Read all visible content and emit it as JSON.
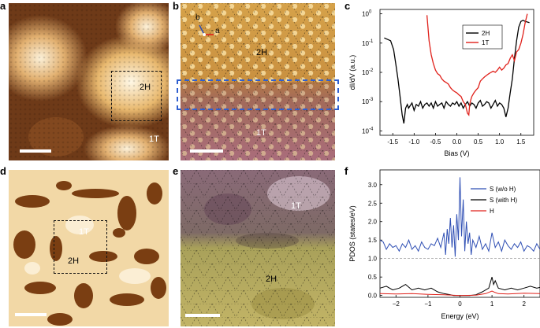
{
  "panels": {
    "a": {
      "label": "a",
      "region_2h": "2H",
      "region_1t": "1T"
    },
    "b": {
      "label": "b",
      "vec_a": "a",
      "vec_b": "b",
      "region_2h": "2H",
      "region_1t": "1T"
    },
    "c": {
      "label": "c"
    },
    "d": {
      "label": "d",
      "region_1t": "1T",
      "region_2h": "2H"
    },
    "e": {
      "label": "e",
      "region_1t": "1T",
      "region_2h": "2H"
    },
    "f": {
      "label": "f"
    }
  },
  "colors": {
    "black": "#000000",
    "red": "#e0201a",
    "blue": "#2f4fb4",
    "dashed_blue": "#2f5fd0"
  },
  "chart_data": [
    {
      "id": "c",
      "type": "line",
      "ylabel": "dI/dV (a.u.)",
      "xlabel": "Bias (V)",
      "yscale": "log",
      "xlim": [
        -1.8,
        1.8
      ],
      "ylim_exp": [
        -4,
        0
      ],
      "xticks": [
        -1.5,
        -1.0,
        -0.5,
        0.0,
        0.5,
        1.0,
        1.5
      ],
      "xtick_labels": [
        "-1.5",
        "-1.0",
        "-0.5",
        "0.0",
        "0.5",
        "1.0",
        "1.5"
      ],
      "ytick_exps": [
        -4,
        -3,
        -2,
        -1,
        0
      ],
      "ytick_labels": [
        "10",
        "10",
        "10",
        "10",
        "10"
      ],
      "ytick_sups": [
        "-4",
        "-3",
        "-2",
        "-1",
        "0"
      ],
      "series": [
        {
          "name": "2H",
          "color": "#000000",
          "x": [
            -1.7,
            -1.55,
            -1.48,
            -1.43,
            -1.38,
            -1.33,
            -1.28,
            -1.24,
            -1.2,
            -1.16,
            -1.13,
            -1.1,
            -1.05,
            -1.0,
            -0.95,
            -0.9,
            -0.85,
            -0.8,
            -0.75,
            -0.7,
            -0.65,
            -0.6,
            -0.55,
            -0.5,
            -0.45,
            -0.4,
            -0.35,
            -0.3,
            -0.25,
            -0.2,
            -0.15,
            -0.1,
            -0.05,
            0.0,
            0.05,
            0.1,
            0.15,
            0.2,
            0.25,
            0.3,
            0.35,
            0.4,
            0.45,
            0.5,
            0.55,
            0.6,
            0.65,
            0.7,
            0.75,
            0.8,
            0.85,
            0.9,
            0.95,
            1.0,
            1.05,
            1.1,
            1.15,
            1.2,
            1.25,
            1.3,
            1.35,
            1.4,
            1.45,
            1.5,
            1.55,
            1.6,
            1.7
          ],
          "y": [
            0.15,
            0.12,
            0.06,
            0.02,
            0.006,
            0.0015,
            0.00035,
            0.00018,
            0.0006,
            0.0008,
            0.0006,
            0.0007,
            0.0009,
            0.0005,
            0.0008,
            0.0007,
            0.001,
            0.0006,
            0.0008,
            0.0009,
            0.0007,
            0.0009,
            0.0006,
            0.001,
            0.0007,
            0.0008,
            0.0009,
            0.0006,
            0.001,
            0.0008,
            0.0007,
            0.0009,
            0.0008,
            0.001,
            0.0007,
            0.0009,
            0.0006,
            0.0008,
            0.001,
            0.0007,
            0.0009,
            0.0008,
            0.0006,
            0.0009,
            0.0011,
            0.0007,
            0.0008,
            0.001,
            0.0009,
            0.0006,
            0.0008,
            0.0011,
            0.0007,
            0.0009,
            0.0008,
            0.0006,
            0.0003,
            0.0006,
            0.002,
            0.006,
            0.03,
            0.12,
            0.35,
            0.55,
            0.6,
            0.55,
            0.5
          ]
        },
        {
          "name": "1T",
          "color": "#e0201a",
          "x": [
            -0.7,
            -0.65,
            -0.6,
            -0.55,
            -0.5,
            -0.45,
            -0.4,
            -0.35,
            -0.3,
            -0.25,
            -0.2,
            -0.15,
            -0.1,
            -0.05,
            0.0,
            0.05,
            0.1,
            0.15,
            0.2,
            0.25,
            0.28,
            0.3,
            0.33,
            0.35,
            0.4,
            0.45,
            0.5,
            0.55,
            0.6,
            0.65,
            0.7,
            0.75,
            0.8,
            0.85,
            0.9,
            0.95,
            1.0,
            1.05,
            1.1,
            1.15,
            1.2,
            1.25,
            1.3,
            1.35,
            1.4,
            1.45,
            1.5,
            1.55,
            1.6,
            1.65
          ],
          "y": [
            0.9,
            0.12,
            0.04,
            0.02,
            0.012,
            0.009,
            0.008,
            0.006,
            0.005,
            0.0045,
            0.004,
            0.003,
            0.0025,
            0.0022,
            0.002,
            0.0017,
            0.0015,
            0.001,
            0.0008,
            0.0004,
            0.00035,
            0.0008,
            0.0012,
            0.0015,
            0.002,
            0.0025,
            0.003,
            0.005,
            0.006,
            0.007,
            0.008,
            0.009,
            0.01,
            0.011,
            0.01,
            0.012,
            0.015,
            0.012,
            0.014,
            0.018,
            0.02,
            0.03,
            0.04,
            0.025,
            0.05,
            0.06,
            0.1,
            0.2,
            0.5,
            1.0
          ]
        }
      ],
      "legend": [
        "2H",
        "1T"
      ]
    },
    {
      "id": "f",
      "type": "line",
      "ylabel": "PDOS (states/eV)",
      "xlabel": "Energy (eV)",
      "xlim": [
        -2.5,
        2.5
      ],
      "ylim": [
        -0.05,
        3.4
      ],
      "xticks": [
        -2,
        -1,
        0,
        1,
        2
      ],
      "xtick_labels": [
        "−2",
        "−1",
        "0",
        "1",
        "2"
      ],
      "yticks": [
        0.0,
        0.5,
        1.0,
        1.5,
        2.0,
        2.5,
        3.0
      ],
      "ytick_labels": [
        "0.0",
        "0.5",
        "1.0",
        "1.5",
        "2.0",
        "2.5",
        "3.0"
      ],
      "baseline": 1.0,
      "series": [
        {
          "name": "S (w/o H)",
          "color": "#2f4fb4",
          "x": [
            -2.5,
            -2.4,
            -2.3,
            -2.2,
            -2.1,
            -2.0,
            -1.9,
            -1.8,
            -1.7,
            -1.6,
            -1.5,
            -1.4,
            -1.3,
            -1.2,
            -1.1,
            -1.0,
            -0.9,
            -0.8,
            -0.7,
            -0.6,
            -0.5,
            -0.45,
            -0.4,
            -0.35,
            -0.3,
            -0.25,
            -0.2,
            -0.15,
            -0.1,
            -0.05,
            0.0,
            0.05,
            0.1,
            0.15,
            0.2,
            0.25,
            0.3,
            0.35,
            0.4,
            0.5,
            0.6,
            0.7,
            0.8,
            0.9,
            1.0,
            1.1,
            1.2,
            1.3,
            1.4,
            1.5,
            1.6,
            1.7,
            1.8,
            1.9,
            2.0,
            2.1,
            2.2,
            2.3,
            2.4,
            2.5
          ],
          "y": [
            1.5,
            1.45,
            1.25,
            1.4,
            1.3,
            1.35,
            1.2,
            1.4,
            1.3,
            1.5,
            1.25,
            1.35,
            1.2,
            1.45,
            1.3,
            1.25,
            1.4,
            1.35,
            1.55,
            1.3,
            1.7,
            1.1,
            1.8,
            1.4,
            2.1,
            1.3,
            1.9,
            1.05,
            2.2,
            1.5,
            3.2,
            1.6,
            2.6,
            1.2,
            2.0,
            1.4,
            1.7,
            1.1,
            1.5,
            1.3,
            1.6,
            1.25,
            1.4,
            1.2,
            1.7,
            1.3,
            1.45,
            1.2,
            1.5,
            1.35,
            1.25,
            1.4,
            1.3,
            1.45,
            1.2,
            1.35,
            1.3,
            1.2,
            1.4,
            1.25
          ]
        },
        {
          "name": "S (with H)",
          "color": "#000000",
          "x": [
            -2.5,
            -2.3,
            -2.1,
            -1.9,
            -1.7,
            -1.5,
            -1.3,
            -1.1,
            -0.9,
            -0.7,
            -0.5,
            -0.3,
            -0.2,
            -0.1,
            0.0,
            0.1,
            0.2,
            0.3,
            0.5,
            0.7,
            0.9,
            1.0,
            1.05,
            1.1,
            1.2,
            1.4,
            1.6,
            1.8,
            2.0,
            2.2,
            2.4,
            2.5
          ],
          "y": [
            0.2,
            0.25,
            0.15,
            0.2,
            0.3,
            0.15,
            0.2,
            0.15,
            0.2,
            0.1,
            0.05,
            0.02,
            0.0,
            0.0,
            0.0,
            0.0,
            0.0,
            0.0,
            0.02,
            0.1,
            0.2,
            0.5,
            0.3,
            0.4,
            0.2,
            0.15,
            0.2,
            0.15,
            0.2,
            0.25,
            0.2,
            0.22
          ]
        },
        {
          "name": "H",
          "color": "#e0201a",
          "x": [
            -2.5,
            -2.0,
            -1.5,
            -1.0,
            -0.5,
            0.0,
            0.5,
            0.8,
            1.0,
            1.1,
            1.2,
            1.5,
            2.0,
            2.5
          ],
          "y": [
            0.05,
            0.04,
            0.05,
            0.03,
            0.02,
            0.0,
            0.01,
            0.05,
            0.12,
            0.08,
            0.05,
            0.04,
            0.06,
            0.05
          ]
        }
      ],
      "legend": [
        "S (w/o H)",
        "S (with H)",
        "H"
      ]
    }
  ]
}
